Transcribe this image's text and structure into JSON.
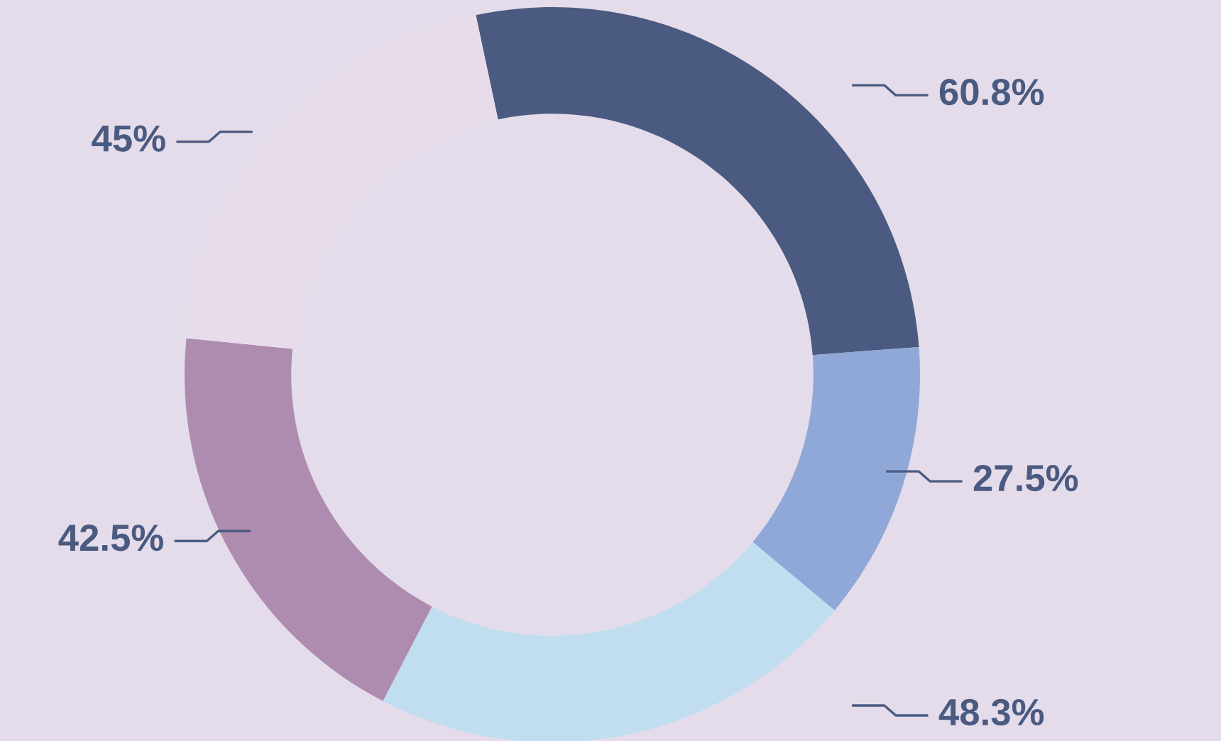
{
  "chart_data": {
    "type": "donut",
    "categories": [
      null,
      null,
      null,
      null,
      null
    ],
    "values": [
      60.8,
      27.5,
      48.3,
      42.5,
      45
    ],
    "colors": [
      "#4a5a80",
      "#8fa8d8",
      "#c0def0",
      "#ad8cb0",
      "#e8dcea"
    ],
    "value_labels": [
      "60.8%",
      "27.5%",
      "48.3%",
      "42.5%",
      "45%"
    ]
  }
}
